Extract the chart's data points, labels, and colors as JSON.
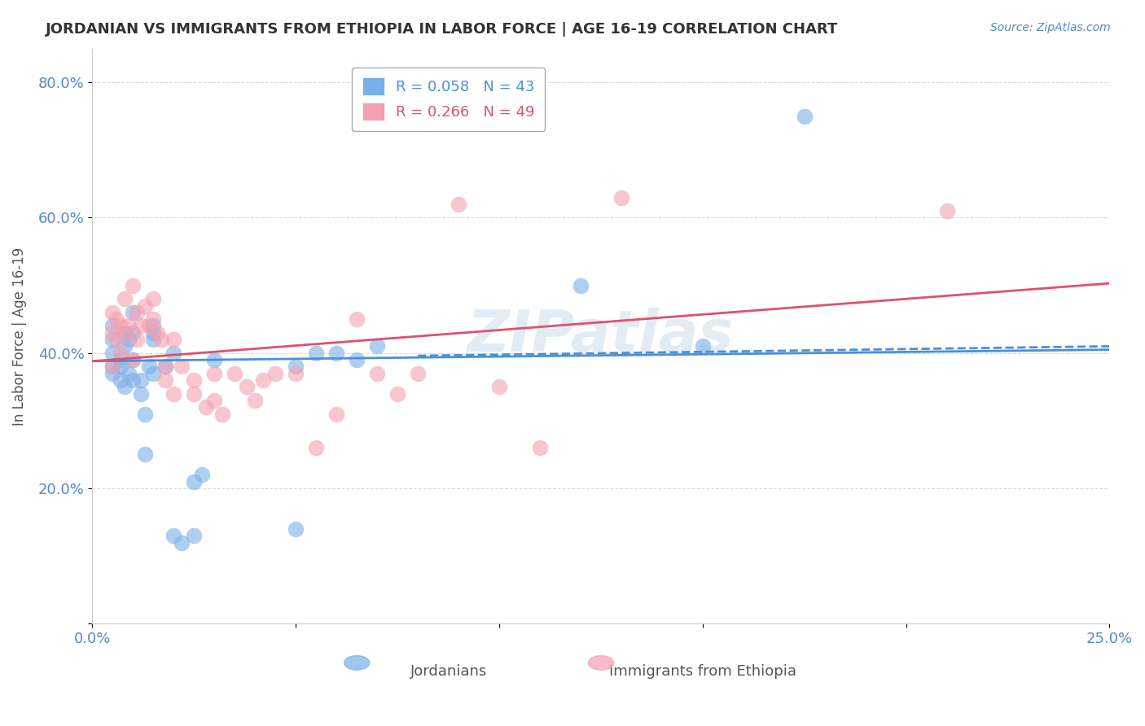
{
  "title": "JORDANIAN VS IMMIGRANTS FROM ETHIOPIA IN LABOR FORCE | AGE 16-19 CORRELATION CHART",
  "source": "Source: ZipAtlas.com",
  "xlabel_bottom": "",
  "ylabel": "In Labor Force | Age 16-19",
  "xlim": [
    0.0,
    0.25
  ],
  "ylim": [
    0.0,
    0.85
  ],
  "xticks": [
    0.0,
    0.05,
    0.1,
    0.15,
    0.2,
    0.25
  ],
  "yticks": [
    0.0,
    0.2,
    0.4,
    0.6,
    0.8
  ],
  "ytick_labels": [
    "",
    "20.0%",
    "40.0%",
    "60.0%",
    "80.0%"
  ],
  "xtick_labels": [
    "0.0%",
    "",
    "",
    "",
    "",
    "25.0%"
  ],
  "watermark": "ZIPatlas",
  "legend": [
    {
      "label": "R = 0.058   N = 43",
      "color": "#7ab0e8"
    },
    {
      "label": "R = 0.266   N = 49",
      "color": "#f4a0b0"
    }
  ],
  "blue_color": "#7ab0e8",
  "pink_color": "#f4a0b0",
  "blue_line_color": "#4a90d9",
  "pink_line_color": "#e05070",
  "axis_color": "#5588cc",
  "grid_color": "#cccccc",
  "title_color": "#333333",
  "blue_scatter_x": [
    0.005,
    0.005,
    0.005,
    0.005,
    0.005,
    0.007,
    0.007,
    0.007,
    0.008,
    0.008,
    0.008,
    0.009,
    0.009,
    0.01,
    0.01,
    0.01,
    0.01,
    0.012,
    0.012,
    0.013,
    0.013,
    0.014,
    0.015,
    0.015,
    0.015,
    0.015,
    0.018,
    0.02,
    0.02,
    0.022,
    0.025,
    0.025,
    0.027,
    0.03,
    0.05,
    0.05,
    0.055,
    0.06,
    0.065,
    0.07,
    0.12,
    0.15,
    0.175
  ],
  "blue_scatter_y": [
    0.38,
    0.4,
    0.42,
    0.44,
    0.37,
    0.39,
    0.38,
    0.36,
    0.43,
    0.41,
    0.35,
    0.37,
    0.42,
    0.46,
    0.43,
    0.39,
    0.36,
    0.36,
    0.34,
    0.31,
    0.25,
    0.38,
    0.42,
    0.44,
    0.43,
    0.37,
    0.38,
    0.4,
    0.13,
    0.12,
    0.21,
    0.13,
    0.22,
    0.39,
    0.38,
    0.14,
    0.4,
    0.4,
    0.39,
    0.41,
    0.5,
    0.41,
    0.75
  ],
  "pink_scatter_x": [
    0.005,
    0.005,
    0.005,
    0.006,
    0.006,
    0.007,
    0.007,
    0.008,
    0.008,
    0.009,
    0.01,
    0.01,
    0.011,
    0.011,
    0.012,
    0.013,
    0.014,
    0.015,
    0.015,
    0.016,
    0.017,
    0.018,
    0.018,
    0.02,
    0.02,
    0.022,
    0.025,
    0.025,
    0.028,
    0.03,
    0.03,
    0.032,
    0.035,
    0.038,
    0.04,
    0.042,
    0.045,
    0.05,
    0.055,
    0.06,
    0.065,
    0.07,
    0.075,
    0.08,
    0.09,
    0.1,
    0.11,
    0.13,
    0.21
  ],
  "pink_scatter_y": [
    0.43,
    0.46,
    0.38,
    0.42,
    0.45,
    0.44,
    0.4,
    0.43,
    0.48,
    0.44,
    0.39,
    0.5,
    0.46,
    0.42,
    0.44,
    0.47,
    0.44,
    0.45,
    0.48,
    0.43,
    0.42,
    0.38,
    0.36,
    0.34,
    0.42,
    0.38,
    0.36,
    0.34,
    0.32,
    0.37,
    0.33,
    0.31,
    0.37,
    0.35,
    0.33,
    0.36,
    0.37,
    0.37,
    0.26,
    0.31,
    0.45,
    0.37,
    0.34,
    0.37,
    0.62,
    0.35,
    0.26,
    0.63,
    0.61
  ],
  "blue_trend_x": [
    0.0,
    0.25
  ],
  "blue_trend_y": [
    0.388,
    0.405
  ],
  "pink_trend_x": [
    0.0,
    0.25
  ],
  "pink_trend_y": [
    0.388,
    0.503
  ],
  "figsize": [
    14.06,
    8.92
  ],
  "dpi": 100
}
